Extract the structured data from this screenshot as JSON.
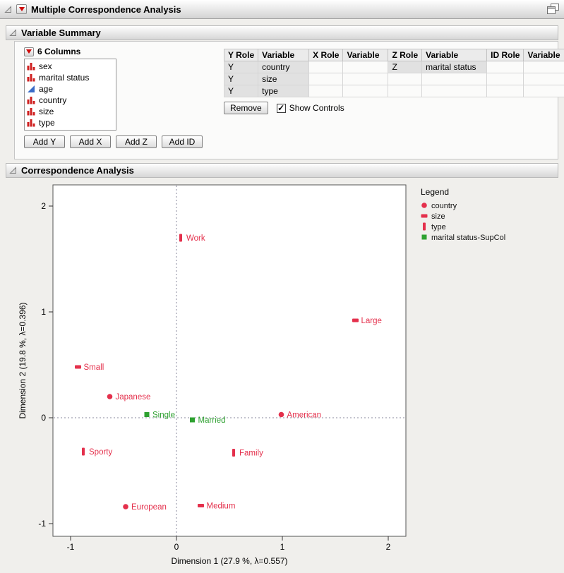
{
  "window": {
    "title": "Multiple Correspondence Analysis"
  },
  "sections": {
    "variable_summary": "Variable Summary",
    "correspondence_analysis": "Correspondence Analysis"
  },
  "columns_panel": {
    "title": "6 Columns",
    "items": [
      {
        "label": "sex",
        "modeling_type": "nominal"
      },
      {
        "label": "marital status",
        "modeling_type": "nominal"
      },
      {
        "label": "age",
        "modeling_type": "continuous"
      },
      {
        "label": "country",
        "modeling_type": "nominal"
      },
      {
        "label": "size",
        "modeling_type": "nominal"
      },
      {
        "label": "type",
        "modeling_type": "nominal"
      }
    ],
    "buttons": [
      "Add Y",
      "Add X",
      "Add Z",
      "Add ID"
    ]
  },
  "roles_table": {
    "headers": [
      "Y Role",
      "Variable",
      "X Role",
      "Variable",
      "Z Role",
      "Variable",
      "ID Role",
      "Variable"
    ],
    "rows": [
      [
        "Y",
        "country",
        "",
        "",
        "Z",
        "marital status",
        "",
        ""
      ],
      [
        "Y",
        "size",
        "",
        "",
        "",
        "",
        "",
        ""
      ],
      [
        "Y",
        "type",
        "",
        "",
        "",
        "",
        "",
        ""
      ]
    ],
    "remove_button": "Remove",
    "show_controls": {
      "label": "Show Controls",
      "checked": true
    }
  },
  "colors": {
    "active_red": "#e4304c",
    "supplementary_green": "#2ea130",
    "red_triangle": "#cf0a0a",
    "nominal_icon_red": "#cf2020",
    "continuous_icon_blue": "#3a6cc8"
  },
  "chart_data": {
    "type": "scatter",
    "xlabel": "Dimension 1 (27.9 %, λ=0.557)",
    "ylabel": "Dimension 2 (19.8 %, λ=0.396)",
    "xlim": [
      -1.1667,
      2.1667
    ],
    "ylim": [
      -1.12,
      2.2
    ],
    "xticks": [
      -1,
      0,
      1,
      2
    ],
    "yticks": [
      -1,
      0,
      1,
      2
    ],
    "grid": false,
    "reference_lines": {
      "x": 0,
      "y": 0
    },
    "legend": {
      "title": "Legend",
      "position": "right-top",
      "entries": [
        {
          "label": "country",
          "marker": "circle",
          "color": "#e4304c"
        },
        {
          "label": "size",
          "marker": "hbar",
          "color": "#e4304c"
        },
        {
          "label": "type",
          "marker": "vbar",
          "color": "#e4304c"
        },
        {
          "label": "marital status-SupCol",
          "marker": "square",
          "color": "#2ea130"
        }
      ]
    },
    "series": [
      {
        "name": "country",
        "marker": "circle",
        "color": "#e4304c",
        "points": [
          {
            "label": "Japanese",
            "x": -0.63,
            "y": 0.2
          },
          {
            "label": "American",
            "x": 0.99,
            "y": 0.03
          },
          {
            "label": "European",
            "x": -0.48,
            "y": -0.84
          }
        ]
      },
      {
        "name": "size",
        "marker": "hbar",
        "color": "#e4304c",
        "points": [
          {
            "label": "Small",
            "x": -0.93,
            "y": 0.48
          },
          {
            "label": "Large",
            "x": 1.69,
            "y": 0.92
          },
          {
            "label": "Medium",
            "x": 0.23,
            "y": -0.83
          }
        ]
      },
      {
        "name": "type",
        "marker": "vbar",
        "color": "#e4304c",
        "points": [
          {
            "label": "Work",
            "x": 0.04,
            "y": 1.7
          },
          {
            "label": "Sporty",
            "x": -0.88,
            "y": -0.32
          },
          {
            "label": "Family",
            "x": 0.54,
            "y": -0.33
          }
        ]
      },
      {
        "name": "marital status-SupCol",
        "marker": "square",
        "color": "#2ea130",
        "points": [
          {
            "label": "Single",
            "x": -0.28,
            "y": 0.03
          },
          {
            "label": "Married",
            "x": 0.15,
            "y": -0.02
          }
        ]
      }
    ]
  }
}
